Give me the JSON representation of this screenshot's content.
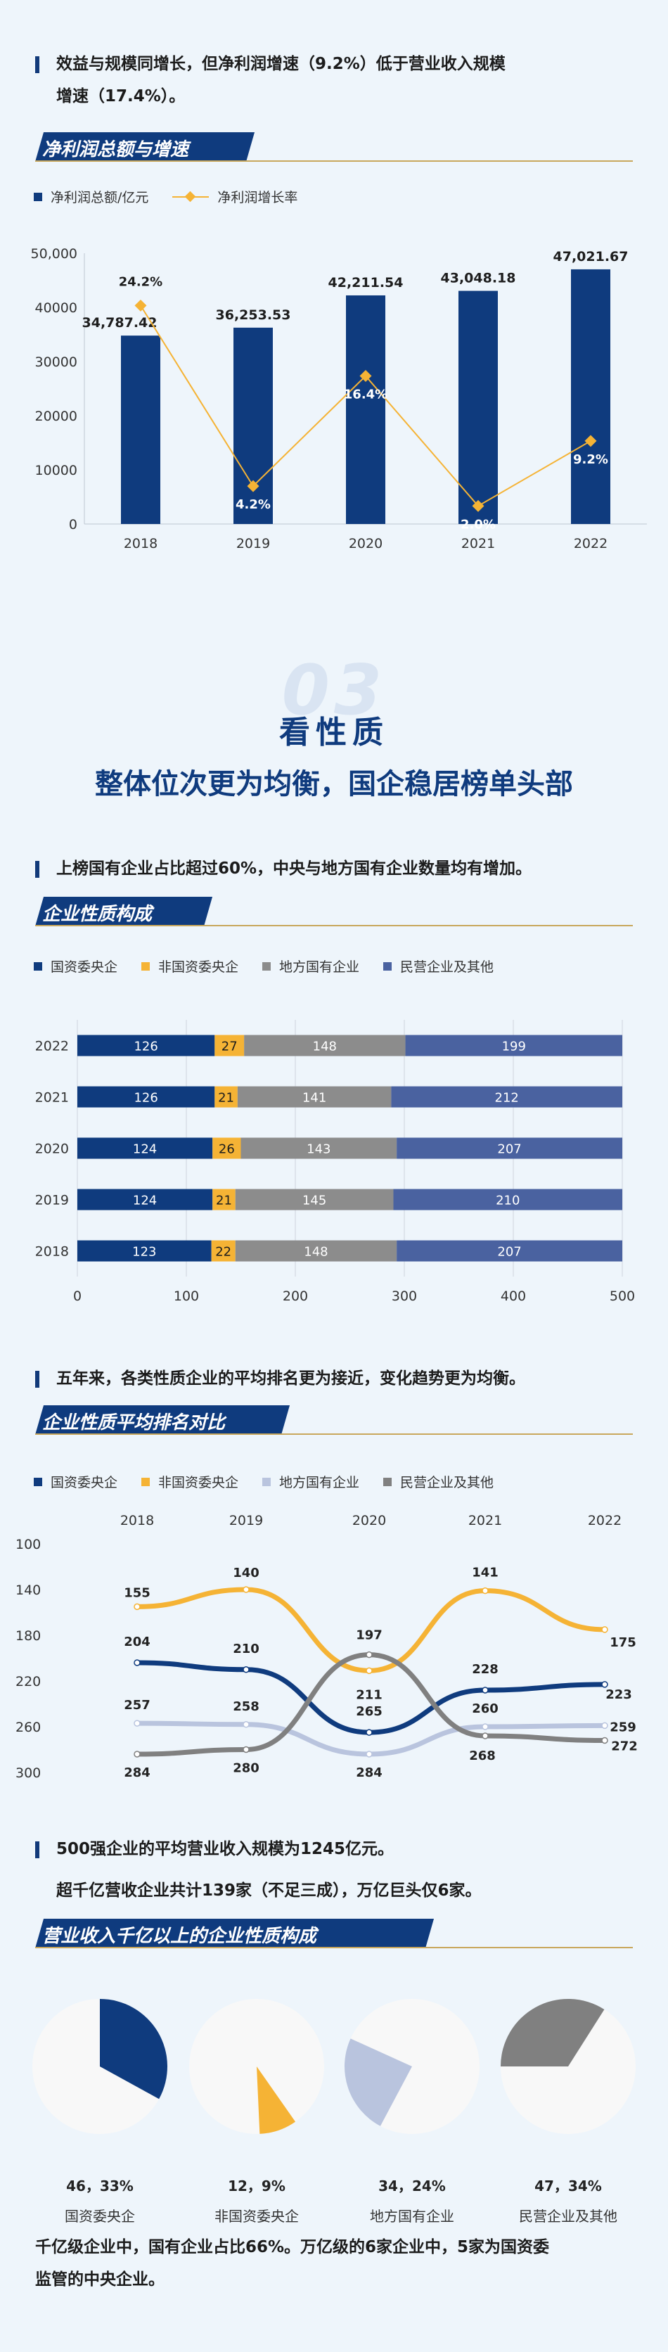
{
  "intro": {
    "text_line1": "效益与规模同增长，但净利润增速（9.2%）低于营业收入规模",
    "text_line2": "增速（17.4%）。"
  },
  "section1": {
    "banner": "净利润总额与增速"
  },
  "chart_data": [
    {
      "type": "bar",
      "title": "净利润总额与增速",
      "categories": [
        "2018",
        "2019",
        "2020",
        "2021",
        "2022"
      ],
      "series": [
        {
          "name": "净利润总额/亿元",
          "type": "bar",
          "values": [
            34787.42,
            36253.53,
            42211.54,
            43048.18,
            47021.67
          ],
          "labels": [
            "34,787.42",
            "36,253.53",
            "42,211.54",
            "43,048.18",
            "47,021.67"
          ],
          "color": "#0f3b7e"
        },
        {
          "name": "净利润增长率",
          "type": "line",
          "values": [
            24.2,
            4.2,
            16.4,
            2.0,
            9.2
          ],
          "labels": [
            "24.2%",
            "4.2%",
            "16.4%",
            "2.0%",
            "9.2%"
          ],
          "color": "#f5b335"
        }
      ],
      "yticks": [
        "0",
        "10000",
        "20000",
        "30000",
        "40000",
        "50,000"
      ],
      "ylim": [
        0,
        50000
      ],
      "y2lim": [
        0,
        30
      ]
    },
    {
      "type": "bar",
      "title": "企业性质构成",
      "orientation": "horizontal",
      "stacked": true,
      "categories": [
        "2022",
        "2021",
        "2020",
        "2019",
        "2018"
      ],
      "series": [
        {
          "name": "国资委央企",
          "values": [
            126,
            126,
            124,
            124,
            123
          ],
          "color": "#0f3b7e"
        },
        {
          "name": "非国资委央企",
          "values": [
            27,
            21,
            26,
            21,
            22
          ],
          "color": "#f5b335"
        },
        {
          "name": "地方国有企业",
          "values": [
            148,
            141,
            143,
            145,
            148
          ],
          "color": "#8c8c8c"
        },
        {
          "name": "民营企业及其他",
          "values": [
            199,
            212,
            207,
            210,
            207
          ],
          "color": "#4a62a0"
        }
      ],
      "xticks": [
        "0",
        "100",
        "200",
        "300",
        "400",
        "500"
      ],
      "xlim": [
        0,
        500
      ]
    },
    {
      "type": "line",
      "title": "企业性质平均排名对比",
      "categories": [
        "2018",
        "2019",
        "2020",
        "2021",
        "2022"
      ],
      "series": [
        {
          "name": "国资委央企",
          "values": [
            204,
            210,
            265,
            228,
            223
          ],
          "color": "#0f3b7e"
        },
        {
          "name": "非国资委央企",
          "values": [
            155,
            140,
            211,
            141,
            175
          ],
          "color": "#f5b335"
        },
        {
          "name": "地方国有企业",
          "values": [
            257,
            258,
            284,
            260,
            259
          ],
          "color": "#b9c4de"
        },
        {
          "name": "民营企业及其他",
          "values": [
            284,
            280,
            197,
            268,
            272
          ],
          "color": "#808080"
        }
      ],
      "yticks": [
        "100",
        "140",
        "180",
        "220",
        "260",
        "300"
      ],
      "ylim": [
        300,
        100
      ],
      "yaxis_inverted": true
    },
    {
      "type": "pie",
      "title": "营业收入千亿以上的企业性质构成",
      "slices": [
        {
          "name": "国资委央企",
          "count": 46,
          "percent": 33,
          "label": "46，33%",
          "color": "#0f3b7e"
        },
        {
          "name": "非国资委央企",
          "count": 12,
          "percent": 9,
          "label": "12，9%",
          "color": "#f5b335"
        },
        {
          "name": "地方国有企业",
          "count": 34,
          "percent": 24,
          "label": "34，24%",
          "color": "#b9c4de"
        },
        {
          "name": "民营企业及其他",
          "count": 47,
          "percent": 34,
          "label": "47，34%",
          "color": "#808080"
        }
      ]
    }
  ],
  "section3": {
    "num": "03",
    "label": "看性质",
    "subtitle": "整体位次更为均衡，国企稳居榜单头部"
  },
  "section2": {
    "lead": "上榜国有企业占比超过60%，中央与地方国有企业数量均有增加。",
    "banner": "企业性质构成"
  },
  "section_rank": {
    "lead": "五年来，各类性质企业的平均排名更为接近，变化趋势更为均衡。",
    "banner": "企业性质平均排名对比"
  },
  "section_pie": {
    "lead1": "500强企业的平均营业收入规模为1245亿元。",
    "lead2": "超千亿营收企业共计139家（不足三成），万亿巨头仅6家。",
    "banner": "营业收入千亿以上的企业性质构成"
  },
  "final": {
    "line1": "千亿级企业中，国有企业占比66%。万亿级的6家企业中，5家为国资委",
    "line2": "监管的中央企业。"
  },
  "colors": {
    "navy": "#0f3b7e",
    "gold": "#f5b335",
    "grey": "#8c8c8c",
    "slate": "#4a62a0",
    "lavender": "#b9c4de",
    "background": "#eef5fb"
  }
}
